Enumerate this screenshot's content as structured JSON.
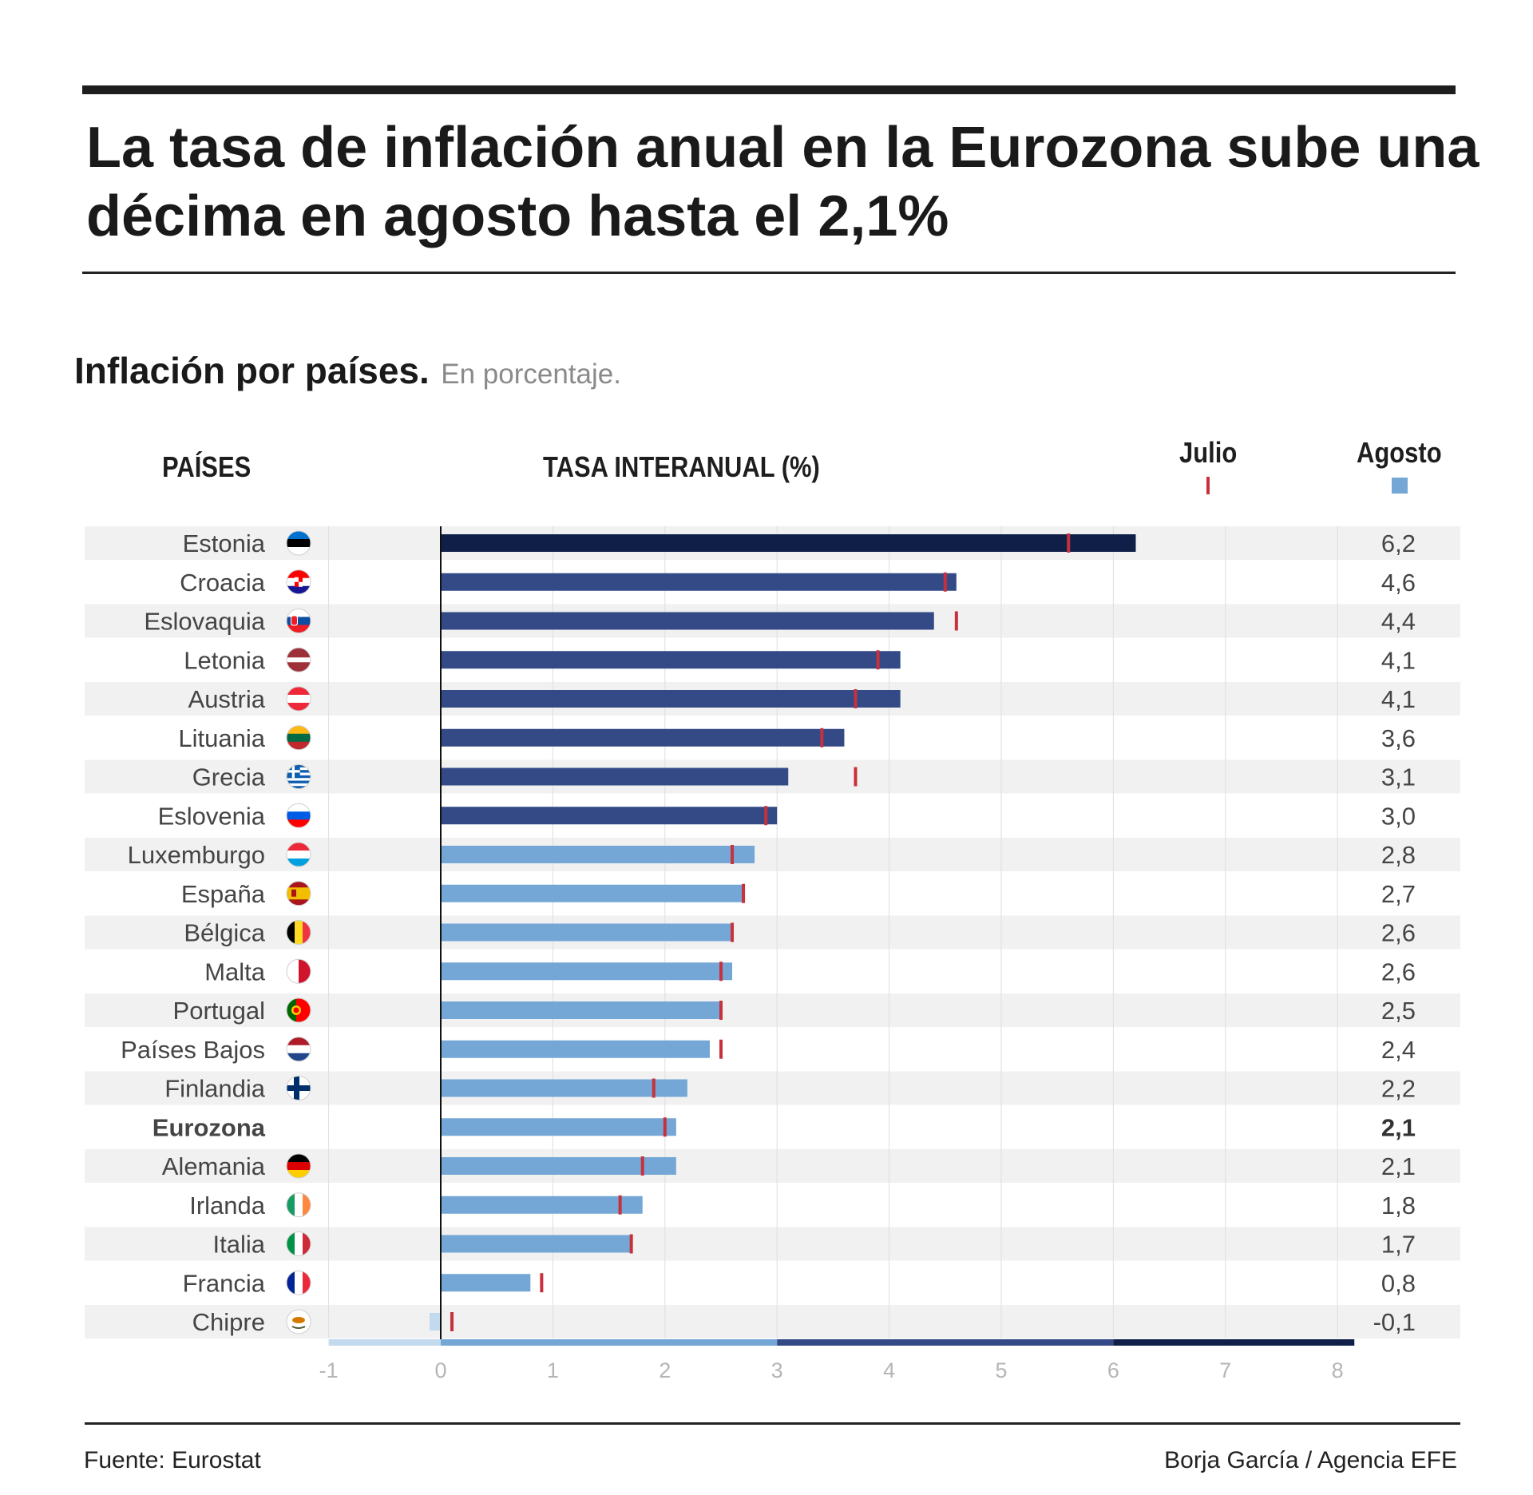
{
  "title": "La tasa de inflación anual en la Eurozona sube una décima en agosto hasta el 2,1%",
  "subtitle": {
    "main": "Inflación por países.",
    "unit": "En porcentaje."
  },
  "headers": {
    "countries": "PAÍSES",
    "rate": "TASA INTERANUAL (%)",
    "july": "Julio",
    "august": "Agosto"
  },
  "colors": {
    "darkest": "#0f1f47",
    "dark": "#334a86",
    "medium": "#74a7d6",
    "light": "#c2d9ee",
    "july_marker": "#c8313c",
    "row_stripe": "#f1f1f1"
  },
  "chart_data": {
    "type": "bar",
    "orientation": "horizontal",
    "title": "Inflación por países. En porcentaje.",
    "xlabel": "TASA INTERANUAL (%)",
    "xlim": [
      -1,
      8
    ],
    "xticks": [
      "-1",
      "0",
      "1",
      "2",
      "3",
      "4",
      "5",
      "6",
      "7",
      "8"
    ],
    "color_bands": [
      {
        "from": -1,
        "to": 0,
        "color": "#c2d9ee"
      },
      {
        "from": 0,
        "to": 3,
        "color": "#74a7d6"
      },
      {
        "from": 3,
        "to": 6,
        "color": "#334a86"
      },
      {
        "from": 6,
        "to": 8.15,
        "color": "#0f1f47"
      }
    ],
    "series": [
      {
        "name": "Agosto",
        "type": "bar"
      },
      {
        "name": "Julio",
        "type": "marker"
      }
    ],
    "rows": [
      {
        "country": "Estonia",
        "flag": "flag-estonia",
        "august": 6.2,
        "july": 5.6,
        "label": "6,2"
      },
      {
        "country": "Croacia",
        "flag": "flag-croatia",
        "august": 4.6,
        "july": 4.5,
        "label": "4,6"
      },
      {
        "country": "Eslovaquia",
        "flag": "flag-slovakia",
        "august": 4.4,
        "july": 4.6,
        "label": "4,4"
      },
      {
        "country": "Letonia",
        "flag": "flag-latvia",
        "august": 4.1,
        "july": 3.9,
        "label": "4,1"
      },
      {
        "country": "Austria",
        "flag": "flag-austria",
        "august": 4.1,
        "july": 3.7,
        "label": "4,1"
      },
      {
        "country": "Lituania",
        "flag": "flag-lithuania",
        "august": 3.6,
        "july": 3.4,
        "label": "3,6"
      },
      {
        "country": "Grecia",
        "flag": "flag-greece",
        "august": 3.1,
        "july": 3.7,
        "label": "3,1"
      },
      {
        "country": "Eslovenia",
        "flag": "flag-slovenia",
        "august": 3.0,
        "july": 2.9,
        "label": "3,0"
      },
      {
        "country": "Luxemburgo",
        "flag": "flag-luxembourg",
        "august": 2.8,
        "july": 2.6,
        "label": "2,8"
      },
      {
        "country": "España",
        "flag": "flag-spain",
        "august": 2.7,
        "july": 2.7,
        "label": "2,7"
      },
      {
        "country": "Bélgica",
        "flag": "flag-belgium",
        "august": 2.6,
        "july": 2.6,
        "label": "2,6"
      },
      {
        "country": "Malta",
        "flag": "flag-malta",
        "august": 2.6,
        "july": 2.5,
        "label": "2,6"
      },
      {
        "country": "Portugal",
        "flag": "flag-portugal",
        "august": 2.5,
        "july": 2.5,
        "label": "2,5"
      },
      {
        "country": "Países Bajos",
        "flag": "flag-netherlands",
        "august": 2.4,
        "july": 2.5,
        "label": "2,4"
      },
      {
        "country": "Finlandia",
        "flag": "flag-finland",
        "august": 2.2,
        "july": 1.9,
        "label": "2,2"
      },
      {
        "country": "Eurozona",
        "flag": "",
        "bold": true,
        "august": 2.1,
        "july": 2.0,
        "label": "2,1"
      },
      {
        "country": "Alemania",
        "flag": "flag-germany",
        "august": 2.1,
        "july": 1.8,
        "label": "2,1"
      },
      {
        "country": "Irlanda",
        "flag": "flag-ireland",
        "august": 1.8,
        "july": 1.6,
        "label": "1,8"
      },
      {
        "country": "Italia",
        "flag": "flag-italy",
        "august": 1.7,
        "july": 1.7,
        "label": "1,7"
      },
      {
        "country": "Francia",
        "flag": "flag-france",
        "august": 0.8,
        "july": 0.9,
        "label": "0,8"
      },
      {
        "country": "Chipre",
        "flag": "flag-cyprus",
        "august": -0.1,
        "july": 0.1,
        "label": "-0,1"
      }
    ]
  },
  "footer": {
    "source": "Fuente: Eurostat",
    "credit": "Borja García / Agencia EFE"
  }
}
